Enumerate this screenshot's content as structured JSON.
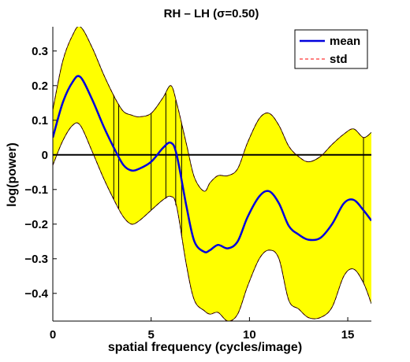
{
  "chart_data": {
    "type": "line",
    "title": "RH – LH (σ=0.50)",
    "xlabel": "spatial frequency (cycles/image)",
    "ylabel": "log(power)",
    "xlim": [
      0,
      16.2
    ],
    "ylim": [
      -0.48,
      0.37
    ],
    "xticks": [
      0,
      5,
      10,
      15
    ],
    "xtick_labels": [
      "0",
      "5",
      "10",
      "15"
    ],
    "yticks": [
      0.3,
      0.2,
      0.1,
      0,
      -0.1,
      -0.2,
      -0.3,
      -0.4
    ],
    "ytick_labels": [
      "0.3",
      "0.2",
      "0.1",
      "0",
      "−0.1",
      "−0.2",
      "−0.3",
      "−0.4"
    ],
    "grid": false,
    "legend_position": "top-right",
    "reference_line_y": 0,
    "shaded_band_color": "#ffff00",
    "colors": {
      "mean": "#0000dd",
      "std": "#ff0000",
      "zero_line": "#000000"
    },
    "significant_region_edges": [
      3.1,
      3.35,
      5.0,
      5.75,
      6.25,
      6.55,
      15.8
    ],
    "series": [
      {
        "name": "mean",
        "style": "solid",
        "x": [
          0,
          0.5,
          1.0,
          1.4,
          2.0,
          2.6,
          3.2,
          3.6,
          4.0,
          4.4,
          5.0,
          5.6,
          6.0,
          6.3,
          6.8,
          7.2,
          7.7,
          8.0,
          8.4,
          8.9,
          9.4,
          9.9,
          10.5,
          11.0,
          11.5,
          12.0,
          12.5,
          13.0,
          13.6,
          14.2,
          14.8,
          15.3,
          15.8,
          16.2
        ],
        "y": [
          0.05,
          0.15,
          0.21,
          0.225,
          0.16,
          0.08,
          0.01,
          -0.03,
          -0.045,
          -0.04,
          -0.02,
          0.02,
          0.035,
          0.0,
          -0.15,
          -0.25,
          -0.28,
          -0.275,
          -0.26,
          -0.27,
          -0.25,
          -0.18,
          -0.12,
          -0.105,
          -0.14,
          -0.205,
          -0.23,
          -0.245,
          -0.24,
          -0.2,
          -0.14,
          -0.13,
          -0.16,
          -0.19
        ]
      },
      {
        "name": "std",
        "style": "dashed",
        "x": [
          0,
          0.5,
          1.0,
          1.4,
          2.0,
          2.6,
          3.2,
          3.6,
          4.0,
          4.4,
          5.0,
          5.6,
          6.0,
          6.3,
          6.8,
          7.2,
          7.7,
          8.0,
          8.4,
          8.9,
          9.4,
          9.9,
          10.5,
          11.0,
          11.5,
          12.0,
          12.5,
          13.0,
          13.6,
          14.2,
          14.8,
          15.3,
          15.8,
          16.2
        ],
        "upper": [
          0.13,
          0.27,
          0.345,
          0.37,
          0.31,
          0.23,
          0.16,
          0.125,
          0.115,
          0.11,
          0.12,
          0.165,
          0.2,
          0.15,
          0.03,
          -0.065,
          -0.105,
          -0.08,
          -0.06,
          -0.06,
          -0.04,
          0.035,
          0.105,
          0.12,
          0.085,
          0.025,
          -0.005,
          -0.02,
          -0.005,
          0.03,
          0.06,
          0.075,
          0.05,
          0.065
        ],
        "lower": [
          -0.03,
          0.04,
          0.085,
          0.085,
          0.01,
          -0.07,
          -0.14,
          -0.18,
          -0.2,
          -0.19,
          -0.16,
          -0.13,
          -0.12,
          -0.15,
          -0.32,
          -0.42,
          -0.45,
          -0.46,
          -0.455,
          -0.48,
          -0.46,
          -0.38,
          -0.3,
          -0.275,
          -0.3,
          -0.42,
          -0.445,
          -0.47,
          -0.47,
          -0.44,
          -0.35,
          -0.33,
          -0.37,
          -0.43
        ]
      }
    ]
  }
}
